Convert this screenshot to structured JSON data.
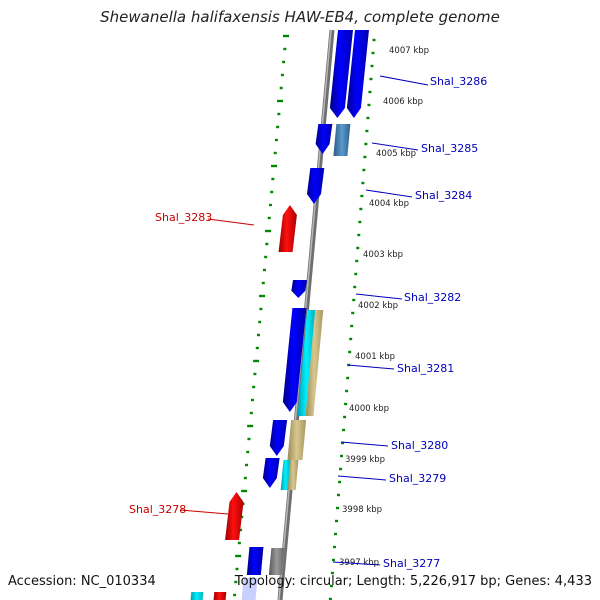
{
  "title": "Shewanella halifaxensis HAW-EB4, complete genome",
  "footer": {
    "accession": "Accession: NC_010334",
    "topology": "Topology: circular; Length: 5,226,917 bp; Genes: 4,433"
  },
  "colors": {
    "forward_gene": "#0000ee",
    "reverse_gene": "#ee0000",
    "forward_label": "#0000bb",
    "reverse_label": "#cc0000",
    "tick": "#008800",
    "backbone": "#888888",
    "cyan_feature": "#00e5ee",
    "khaki_feature": "#c8b878",
    "steel_feature": "#4682b4",
    "gray_feature": "#808080"
  },
  "kbp_labels": [
    "4007 kbp",
    "4006 kbp",
    "4005 kbp",
    "4004 kbp",
    "4003 kbp",
    "4002 kbp",
    "4001 kbp",
    "4000 kbp",
    "3999 kbp",
    "3998 kbp",
    "3997 kbp"
  ],
  "genes_forward": [
    "Shal_3286",
    "Shal_3285",
    "Shal_3284",
    "Shal_3282",
    "Shal_3281",
    "Shal_3280",
    "Shal_3279",
    "Shal_3277"
  ],
  "genes_reverse": [
    "Shal_3283",
    "Shal_3278"
  ]
}
